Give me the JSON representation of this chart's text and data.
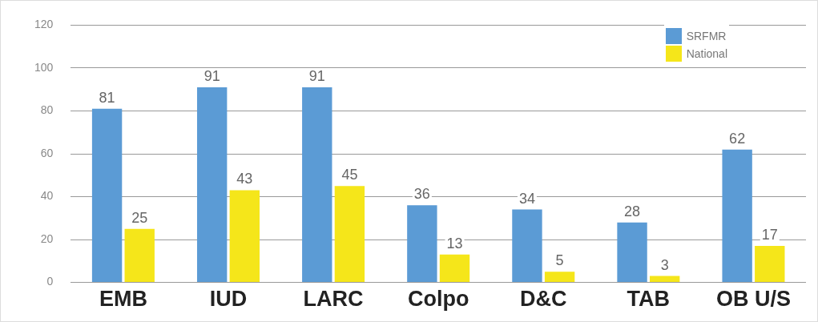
{
  "chart_data": {
    "type": "bar",
    "categories": [
      "EMB",
      "IUD",
      "LARC",
      "Colpo",
      "D&C",
      "TAB",
      "OB U/S"
    ],
    "series": [
      {
        "name": "SRFMR",
        "color": "#5b9bd5",
        "values": [
          81,
          91,
          91,
          36,
          34,
          28,
          62
        ]
      },
      {
        "name": "National",
        "color": "#f5e61a",
        "values": [
          25,
          43,
          45,
          13,
          5,
          3,
          17
        ]
      }
    ],
    "ylim": [
      0,
      120
    ],
    "yticks": [
      0,
      20,
      40,
      60,
      80,
      100,
      120
    ],
    "grid": "y",
    "legend": "top right",
    "data_labels": true
  }
}
